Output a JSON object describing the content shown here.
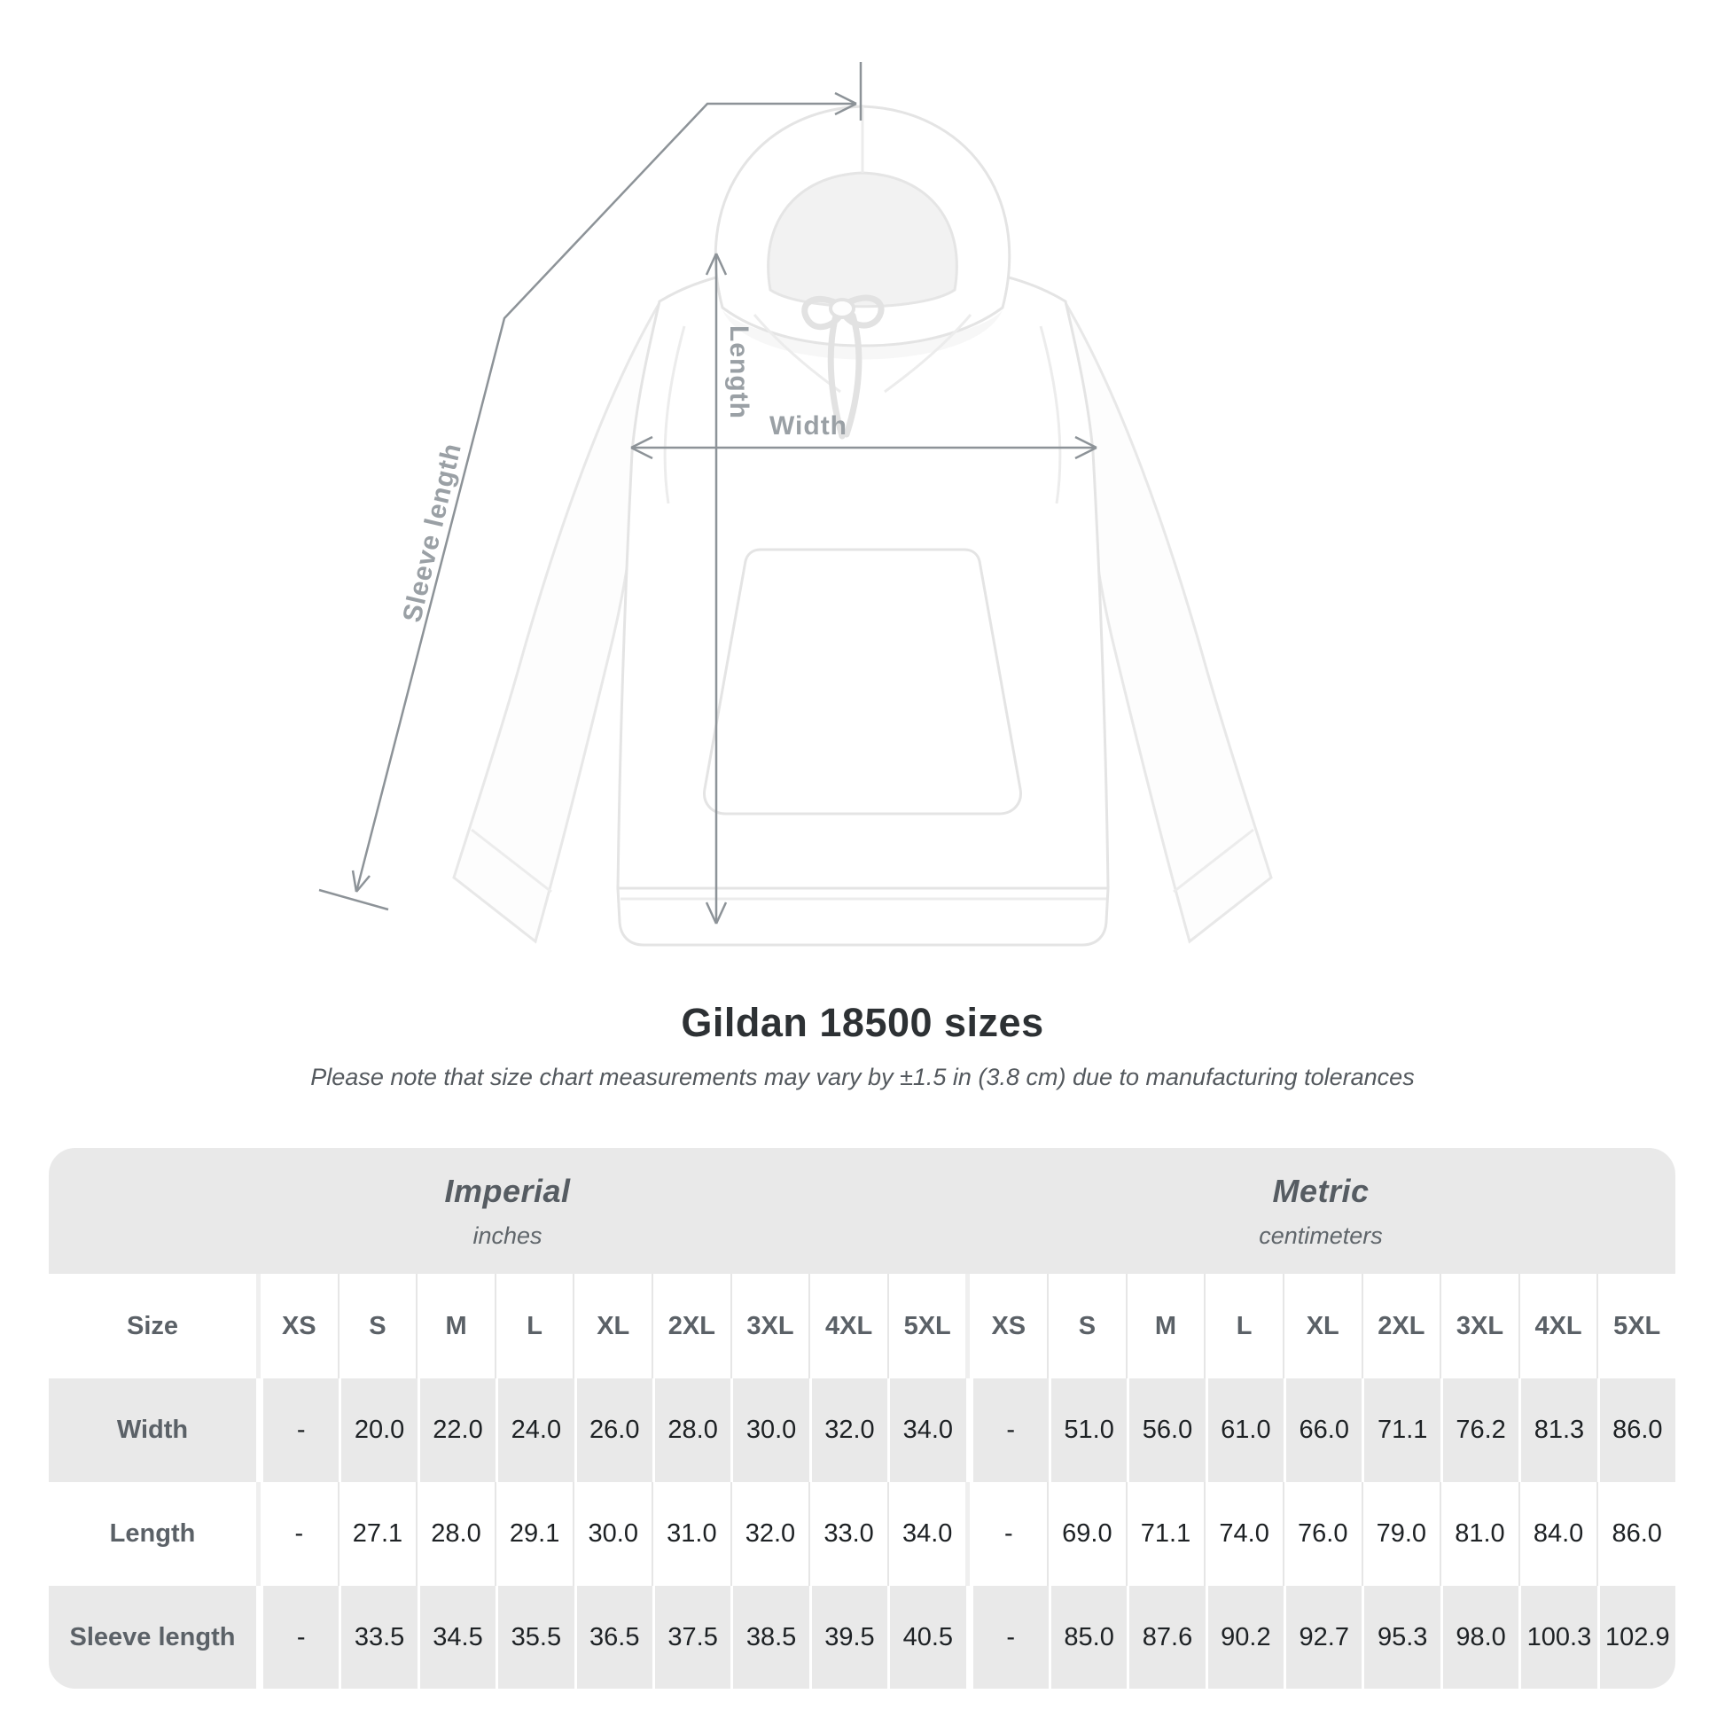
{
  "figure": {
    "length_label": "Length",
    "width_label": "Width",
    "sleeve_length_label": "Sleeve length"
  },
  "heading": {
    "title": "Gildan 18500 sizes",
    "note": "Please note that size chart measurements may vary by ±1.5 in (3.8 cm) due to manufacturing tolerances"
  },
  "chart_data": {
    "type": "table",
    "title": "Gildan 18500 sizes",
    "note": "Please note that size chart measurements may vary by ±1.5 in (3.8 cm) due to manufacturing tolerances",
    "unit_groups": [
      {
        "name": "Imperial",
        "unit": "inches"
      },
      {
        "name": "Metric",
        "unit": "centimeters"
      }
    ],
    "size_column_header": "Size",
    "sizes": [
      "XS",
      "S",
      "M",
      "L",
      "XL",
      "2XL",
      "3XL",
      "4XL",
      "5XL"
    ],
    "rows": [
      {
        "label": "Width",
        "imperial": [
          "-",
          "20.0",
          "22.0",
          "24.0",
          "26.0",
          "28.0",
          "30.0",
          "32.0",
          "34.0"
        ],
        "metric": [
          "-",
          "51.0",
          "56.0",
          "61.0",
          "66.0",
          "71.1",
          "76.2",
          "81.3",
          "86.0"
        ]
      },
      {
        "label": "Length",
        "imperial": [
          "-",
          "27.1",
          "28.0",
          "29.1",
          "30.0",
          "31.0",
          "32.0",
          "33.0",
          "34.0"
        ],
        "metric": [
          "-",
          "69.0",
          "71.1",
          "74.0",
          "76.0",
          "79.0",
          "81.0",
          "84.0",
          "86.0"
        ]
      },
      {
        "label": "Sleeve length",
        "imperial": [
          "-",
          "33.5",
          "34.5",
          "35.5",
          "36.5",
          "37.5",
          "38.5",
          "39.5",
          "40.5"
        ],
        "metric": [
          "-",
          "85.0",
          "87.6",
          "90.2",
          "92.7",
          "95.3",
          "98.0",
          "100.3",
          "102.9"
        ]
      }
    ]
  },
  "colors": {
    "table_band": "#e9e9e9",
    "header_text": "#5b6167",
    "value_text": "#1d2124",
    "annotation_text": "#9aa0a5",
    "annotation_line": "#8d9398"
  }
}
